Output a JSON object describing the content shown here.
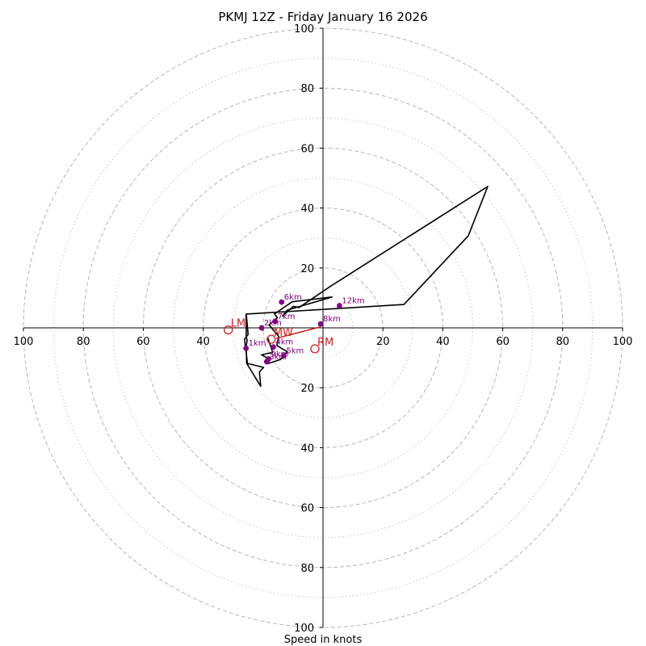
{
  "chart_data": {
    "type": "hodograph",
    "title": "PKMJ 12Z - Friday January 16 2026",
    "xlabel": "Speed in knots",
    "max_speed": 100,
    "major_rings": [
      20,
      40,
      60,
      80,
      100
    ],
    "minor_rings": [
      10,
      30,
      50,
      70,
      90
    ],
    "x_ticks": [
      {
        "value": -100,
        "label": "100"
      },
      {
        "value": -80,
        "label": "80"
      },
      {
        "value": -60,
        "label": "60"
      },
      {
        "value": -40,
        "label": "40"
      },
      {
        "value": -20,
        "label": ""
      },
      {
        "value": 20,
        "label": "20"
      },
      {
        "value": 40,
        "label": "40"
      },
      {
        "value": 60,
        "label": "60"
      },
      {
        "value": 80,
        "label": "80"
      },
      {
        "value": 100,
        "label": "100"
      }
    ],
    "y_ticks": [
      {
        "value": 100,
        "label": "100"
      },
      {
        "value": 80,
        "label": "80"
      },
      {
        "value": 60,
        "label": "60"
      },
      {
        "value": 40,
        "label": "40"
      },
      {
        "value": 20,
        "label": "20"
      },
      {
        "value": -20,
        "label": "20"
      },
      {
        "value": -40,
        "label": "40"
      },
      {
        "value": -60,
        "label": "60"
      },
      {
        "value": -80,
        "label": "80"
      },
      {
        "value": -100,
        "label": "100"
      }
    ],
    "hodograph": {
      "color": "#000000",
      "points": [
        [
          -18.5,
          -3.2
        ],
        [
          -16.8,
          -8.2
        ],
        [
          -20.5,
          -9.0
        ],
        [
          -17.7,
          -10.5
        ],
        [
          -18.6,
          -12.0
        ],
        [
          -14.2,
          -10.6
        ],
        [
          -11.9,
          -8.0
        ],
        [
          -15.4,
          -5.9
        ],
        [
          -14.8,
          -2.8
        ],
        [
          -18.0,
          1.0
        ],
        [
          -15.2,
          3.4
        ],
        [
          -16.2,
          4.6
        ],
        [
          -10.3,
          8.7
        ],
        [
          3.0,
          10.3
        ],
        [
          -12.0,
          5.9
        ],
        [
          -13.5,
          3.9
        ],
        [
          -9.9,
          7.2
        ],
        [
          -8.0,
          6.8
        ],
        [
          2.7,
          14.0
        ],
        [
          55.0,
          47.2
        ],
        [
          48.5,
          30.7
        ],
        [
          27.0,
          7.8
        ],
        [
          -25.6,
          4.6
        ],
        [
          -25.0,
          -2.2
        ],
        [
          -26.2,
          -3.8
        ],
        [
          -25.2,
          -11.9
        ],
        [
          -19.8,
          -13.2
        ],
        [
          -21.2,
          -14.7
        ],
        [
          -20.8,
          -19.5
        ],
        [
          -25.5,
          -11.8
        ],
        [
          -25.6,
          -6.0
        ],
        [
          -25.3,
          -4.0
        ],
        [
          -25.6,
          -3.2
        ],
        [
          -25.7,
          4.6
        ]
      ]
    },
    "height_markers": [
      {
        "label": "1km",
        "x": -25.7,
        "y": -6.8
      },
      {
        "label": "2km",
        "x": -20.5,
        "y": 0.0
      },
      {
        "label": "3km",
        "x": -18.8,
        "y": -11.3
      },
      {
        "label": "4km",
        "x": -16.6,
        "y": -6.4
      },
      {
        "label": "5km",
        "x": -13.1,
        "y": -9.3
      },
      {
        "label": "6km",
        "x": -13.8,
        "y": 8.6
      },
      {
        "label": "7km",
        "x": -16.0,
        "y": 2.2
      },
      {
        "label": "8km",
        "x": -0.8,
        "y": 1.3
      },
      {
        "label": "9km",
        "x": -18.2,
        "y": -10.4
      },
      {
        "label": "12km",
        "x": 5.5,
        "y": 7.4
      }
    ],
    "storm_motion": {
      "color": "#cc2222",
      "vector": [
        [
          -15.6,
          -3.5
        ],
        [
          -0.9,
          0.3
        ]
      ],
      "points": [
        {
          "label": "RM",
          "x": -2.7,
          "y": -7.0
        },
        {
          "label": "LM",
          "x": -31.6,
          "y": -0.7
        },
        {
          "label": "MW",
          "x": -17.3,
          "y": -3.8
        }
      ]
    }
  }
}
